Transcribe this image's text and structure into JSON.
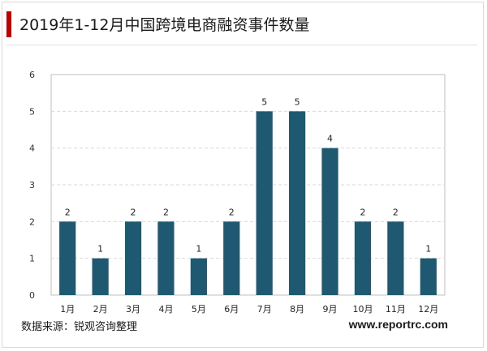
{
  "header": {
    "title": "2019年1-12月中国跨境电商融资事件数量"
  },
  "footer": {
    "source": "数据来源：锐观咨询整理",
    "website": "www.reportrc.com"
  },
  "colors": {
    "bar": "#1f5871",
    "accent": "#c00000",
    "grid": "#d9d9d9"
  },
  "chart_data": {
    "type": "bar",
    "title": "",
    "xlabel": "",
    "ylabel": "",
    "categories": [
      "1月",
      "2月",
      "3月",
      "4月",
      "5月",
      "6月",
      "7月",
      "8月",
      "9月",
      "10月",
      "11月",
      "12月"
    ],
    "values": [
      2,
      1,
      2,
      2,
      1,
      2,
      5,
      5,
      4,
      2,
      2,
      1
    ],
    "ylim": [
      0,
      6
    ],
    "yticks": [
      0,
      1,
      2,
      3,
      4,
      5,
      6
    ],
    "grid": true,
    "data_labels": true
  }
}
